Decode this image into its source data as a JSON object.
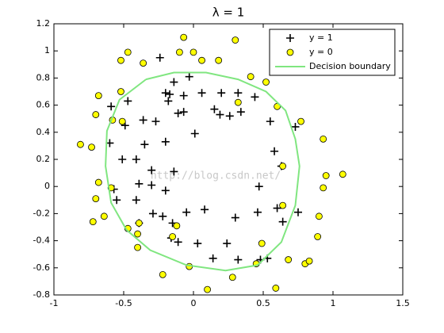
{
  "chart_data": {
    "type": "scatter",
    "title": "λ = 1",
    "watermark": "http://blog.csdn.net/",
    "xlim": [
      -1,
      1.5
    ],
    "ylim": [
      -0.8,
      1.2
    ],
    "xticks": [
      -1,
      -0.5,
      0,
      0.5,
      1,
      1.5
    ],
    "yticks": [
      -0.8,
      -0.6,
      -0.4,
      -0.2,
      0,
      0.2,
      0.4,
      0.6,
      0.8,
      1,
      1.2
    ],
    "legend": "upper right",
    "series": [
      {
        "name": "y = 1",
        "marker": "plus",
        "color": "#000000",
        "x": [
          -0.24,
          -0.14,
          -0.03,
          -0.2,
          -0.17,
          -0.18,
          -0.07,
          0.06,
          0.2,
          0.32,
          0.44,
          -0.47,
          -0.59,
          -0.49,
          -0.36,
          -0.27,
          -0.11,
          -0.07,
          0.15,
          0.19,
          0.26,
          0.34,
          0.55,
          0.73,
          -0.6,
          -0.35,
          -0.2,
          0.01,
          -0.51,
          -0.41,
          0.58,
          0.63,
          -0.3,
          -0.14,
          -0.57,
          -0.39,
          -0.3,
          -0.2,
          0.47,
          -0.55,
          -0.41,
          -0.05,
          0.08,
          -0.29,
          -0.22,
          0.3,
          0.46,
          0.6,
          0.75,
          -0.39,
          -0.15,
          0.64,
          -0.16,
          -0.11,
          0.03,
          0.24,
          0.14,
          0.32,
          0.48,
          0.53
        ],
        "y": [
          0.95,
          0.77,
          0.81,
          0.69,
          0.68,
          0.63,
          0.67,
          0.69,
          0.69,
          0.69,
          0.66,
          0.63,
          0.59,
          0.45,
          0.49,
          0.48,
          0.54,
          0.55,
          0.57,
          0.53,
          0.52,
          0.55,
          0.48,
          0.44,
          0.32,
          0.31,
          0.33,
          0.39,
          0.2,
          0.2,
          0.26,
          0.15,
          0.12,
          0.11,
          -0.02,
          0.02,
          0.01,
          -0.03,
          0,
          -0.1,
          -0.1,
          -0.19,
          -0.17,
          -0.2,
          -0.22,
          -0.23,
          -0.19,
          -0.16,
          -0.19,
          -0.27,
          -0.27,
          -0.26,
          -0.38,
          -0.41,
          -0.42,
          -0.42,
          -0.53,
          -0.54,
          -0.54,
          -0.53
        ]
      },
      {
        "name": "y = 0",
        "marker": "circle",
        "color": "#ffff00",
        "x": [
          -0.07,
          0.3,
          -0.47,
          -0.1,
          0,
          -0.52,
          -0.36,
          0.06,
          0.18,
          0.41,
          0.52,
          0.32,
          -0.52,
          -0.68,
          0.6,
          -0.7,
          -0.58,
          -0.51,
          0.77,
          0.93,
          -0.81,
          -0.73,
          0.64,
          0.95,
          1.07,
          -0.68,
          -0.59,
          0.93,
          -0.7,
          0.64,
          -0.64,
          0.9,
          -0.72,
          -0.12,
          -0.39,
          -0.47,
          -0.4,
          -0.15,
          0.89,
          -0.4,
          0.49,
          -0.03,
          0.45,
          0.68,
          0.8,
          -0.22,
          0.28,
          0.1,
          0.59,
          0.83
        ],
        "y": [
          1.1,
          1.08,
          0.99,
          0.99,
          0.99,
          0.93,
          0.91,
          0.93,
          0.93,
          0.81,
          0.77,
          0.62,
          0.7,
          0.67,
          0.59,
          0.53,
          0.49,
          0.48,
          0.48,
          0.35,
          0.31,
          0.29,
          0.15,
          0.08,
          0.09,
          0.03,
          -0.01,
          -0.01,
          -0.09,
          -0.14,
          -0.22,
          -0.22,
          -0.26,
          -0.29,
          -0.27,
          -0.31,
          -0.35,
          -0.37,
          -0.37,
          -0.45,
          -0.42,
          -0.59,
          -0.57,
          -0.54,
          -0.57,
          -0.65,
          -0.67,
          -0.76,
          -0.75,
          -0.55
        ]
      },
      {
        "name": "Decision boundary",
        "marker": "line",
        "color": "#80e680",
        "x": [
          -0.34,
          -0.53,
          -0.62,
          -0.63,
          -0.59,
          -0.48,
          -0.31,
          -0.05,
          0.23,
          0.46,
          0.63,
          0.73,
          0.76,
          0.73,
          0.66,
          0.52,
          0.32,
          0.09,
          -0.14,
          -0.34
        ],
        "y": [
          0.79,
          0.64,
          0.41,
          0.15,
          -0.12,
          -0.32,
          -0.47,
          -0.58,
          -0.62,
          -0.58,
          -0.41,
          -0.14,
          0.15,
          0.35,
          0.56,
          0.7,
          0.79,
          0.84,
          0.84,
          0.79
        ]
      }
    ]
  }
}
